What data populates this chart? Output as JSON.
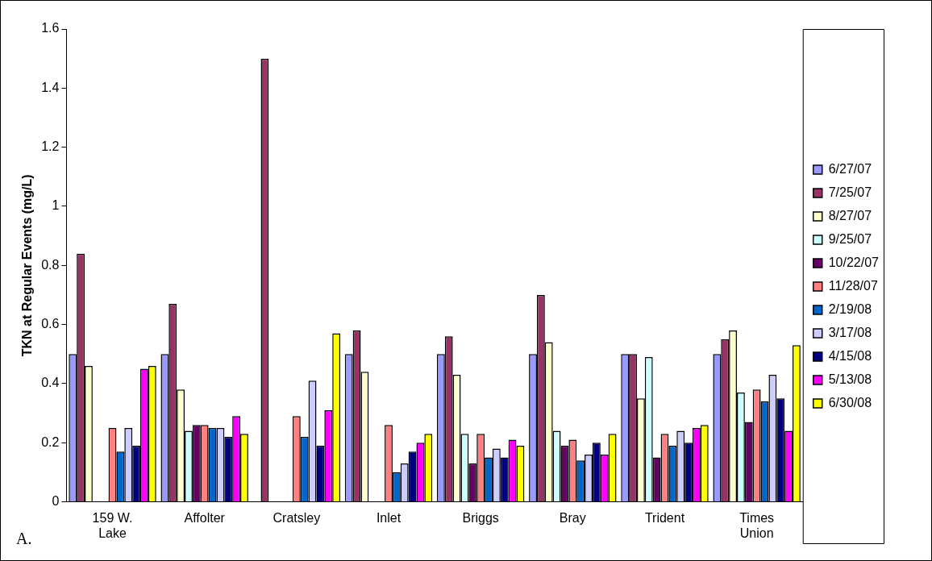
{
  "chart_data": {
    "type": "bar",
    "ylabel": "TKN at Regular Events (mg/L)",
    "annotations": [
      "A."
    ],
    "categories": [
      "159 W. Lake",
      "Affolter",
      "Cratsley",
      "Inlet",
      "Briggs",
      "Bray",
      "Trident",
      "Times Union"
    ],
    "ylim": [
      0,
      1.6
    ],
    "yticks": [
      0,
      0.2,
      0.4,
      0.6,
      0.8,
      1,
      1.2,
      1.4,
      1.6
    ],
    "grid": false,
    "legend": "right",
    "series": [
      {
        "name": "6/27/07",
        "color": "#9999ff",
        "values": [
          0.5,
          0.5,
          null,
          0.5,
          0.5,
          0.5,
          0.5,
          0.5
        ]
      },
      {
        "name": "7/25/07",
        "color": "#993366",
        "values": [
          0.84,
          0.67,
          1.5,
          0.58,
          0.56,
          0.7,
          0.5,
          0.55
        ]
      },
      {
        "name": "8/27/07",
        "color": "#ffffcc",
        "values": [
          0.46,
          0.38,
          null,
          0.44,
          0.43,
          0.54,
          0.35,
          0.58
        ]
      },
      {
        "name": "9/25/07",
        "color": "#ccffff",
        "values": [
          null,
          0.24,
          null,
          null,
          0.23,
          0.24,
          0.49,
          0.37
        ]
      },
      {
        "name": "10/22/07",
        "color": "#660066",
        "values": [
          null,
          0.26,
          null,
          null,
          0.13,
          0.19,
          0.15,
          0.27
        ]
      },
      {
        "name": "11/28/07",
        "color": "#ff8080",
        "values": [
          0.25,
          0.26,
          0.29,
          0.26,
          0.23,
          0.21,
          0.23,
          0.38
        ]
      },
      {
        "name": "2/19/08",
        "color": "#0066cc",
        "values": [
          0.17,
          0.25,
          0.22,
          0.1,
          0.15,
          0.14,
          0.19,
          0.34
        ]
      },
      {
        "name": "3/17/08",
        "color": "#ccccff",
        "values": [
          0.25,
          0.25,
          0.41,
          0.13,
          0.18,
          0.16,
          0.24,
          0.43
        ]
      },
      {
        "name": "4/15/08",
        "color": "#000080",
        "values": [
          0.19,
          0.22,
          0.19,
          0.17,
          0.15,
          0.2,
          0.2,
          0.35
        ]
      },
      {
        "name": "5/13/08",
        "color": "#ff00ff",
        "values": [
          0.45,
          0.29,
          0.31,
          0.2,
          0.21,
          0.16,
          0.25,
          0.24
        ]
      },
      {
        "name": "6/30/08",
        "color": "#ffff00",
        "values": [
          0.46,
          0.23,
          0.57,
          0.23,
          0.19,
          0.23,
          0.26,
          0.53
        ]
      }
    ]
  }
}
